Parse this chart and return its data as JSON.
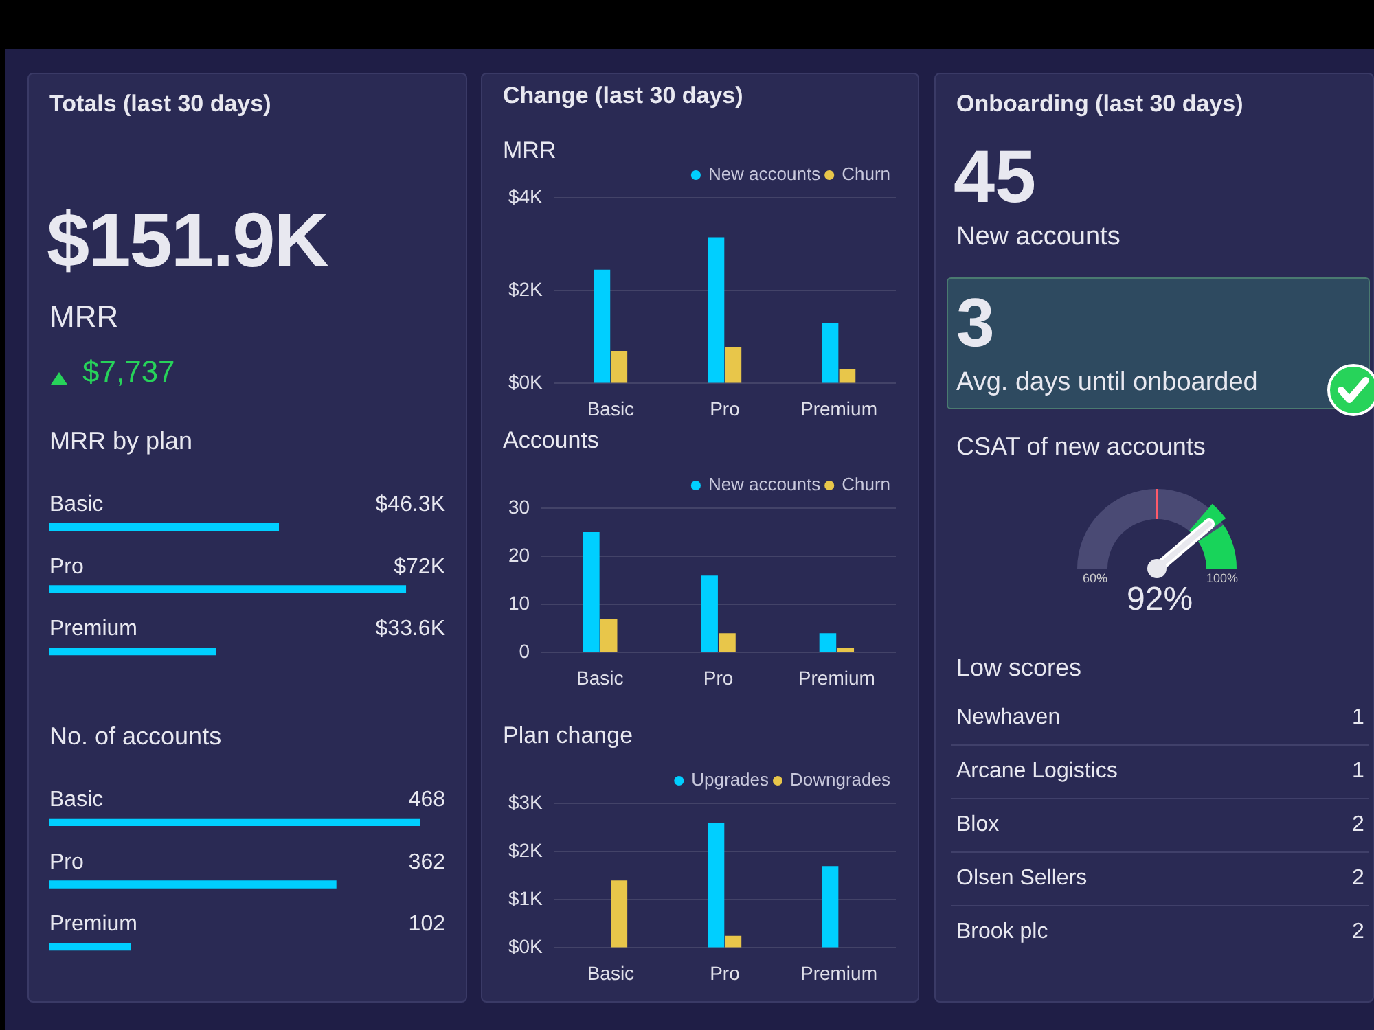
{
  "chart_data": [
    {
      "type": "other",
      "title": "Totals (last 30 days)",
      "annotations": [
        "$151.9K",
        "MRR",
        "$7,737"
      ]
    },
    {
      "type": "bar",
      "orientation": "horizontal",
      "title": "MRR by plan",
      "categories": [
        "Basic",
        "Pro",
        "Premium"
      ],
      "values": [
        46.3,
        72,
        33.6
      ],
      "value_labels": [
        "$46.3K",
        "$72K",
        "$33.6K"
      ],
      "color": "#00cfff"
    },
    {
      "type": "bar",
      "orientation": "horizontal",
      "title": "No. of accounts",
      "categories": [
        "Basic",
        "Pro",
        "Premium"
      ],
      "values": [
        468,
        362,
        102
      ],
      "data_labels": true,
      "color": "#00cfff"
    },
    {
      "type": "bar",
      "title": "Change (last 30 days)",
      "subtitle": "MRR",
      "categories": [
        "Basic",
        "Pro",
        "Premium"
      ],
      "ylim": [
        0,
        4000
      ],
      "yticks": [
        {
          "value": 0,
          "label": "$0K"
        },
        {
          "value": 2000,
          "label": "$2K"
        },
        {
          "value": 4000,
          "label": "$4K"
        }
      ],
      "grid": "y",
      "legend": "top right",
      "series": [
        {
          "name": "New accounts",
          "color": "#00cfff",
          "values": [
            2450,
            3150,
            1300
          ]
        },
        {
          "name": "Churn",
          "color": "#e8c64a",
          "values": [
            700,
            780,
            300
          ]
        }
      ]
    },
    {
      "type": "bar",
      "title": "Accounts",
      "categories": [
        "Basic",
        "Pro",
        "Premium"
      ],
      "ylim": [
        0,
        30
      ],
      "yticks": [
        0,
        10,
        20,
        30
      ],
      "grid": "y",
      "legend": "top right",
      "series": [
        {
          "name": "New accounts",
          "color": "#00cfff",
          "values": [
            25,
            16,
            4
          ]
        },
        {
          "name": "Churn",
          "color": "#e8c64a",
          "values": [
            7,
            4,
            1
          ]
        }
      ]
    },
    {
      "type": "bar",
      "title": "Plan change",
      "categories": [
        "Basic",
        "Pro",
        "Premium"
      ],
      "ylim": [
        0,
        3000
      ],
      "yticks": [
        {
          "value": 0,
          "label": "$0K"
        },
        {
          "value": 1000,
          "label": "$1K"
        },
        {
          "value": 2000,
          "label": "$2K"
        },
        {
          "value": 3000,
          "label": "$3K"
        }
      ],
      "grid": "y",
      "legend": "top right",
      "series": [
        {
          "name": "Upgrades",
          "color": "#00cfff",
          "values": [
            0,
            2600,
            1700
          ]
        },
        {
          "name": "Downgrades",
          "color": "#e8c64a",
          "values": [
            1400,
            250,
            0
          ]
        }
      ]
    },
    {
      "type": "other",
      "title": "Onboarding (last 30 days)",
      "annotations": [
        "45",
        "New accounts",
        "3",
        "Avg. days until onboarded"
      ]
    },
    {
      "type": "other",
      "title": "CSAT of new accounts",
      "annotations": [
        "60%",
        "100%",
        "92%"
      ]
    },
    {
      "type": "other",
      "title": "Low scores",
      "categories": [
        "Newhaven",
        "Arcane Logistics",
        "Blox",
        "Olsen Sellers",
        "Brook plc"
      ],
      "values": [
        1,
        1,
        2,
        2,
        2
      ],
      "data_labels": true
    }
  ]
}
